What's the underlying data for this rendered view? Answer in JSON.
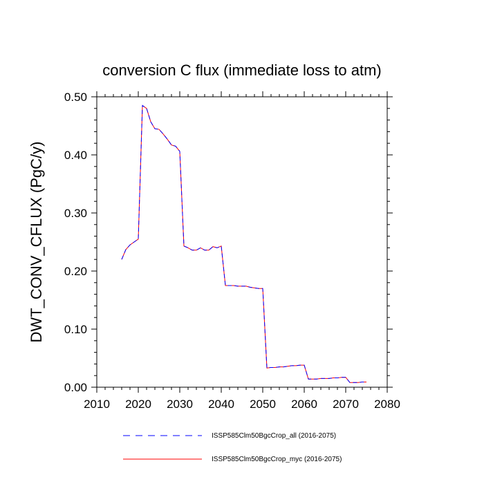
{
  "chart_data": {
    "type": "line",
    "title": "conversion C flux (immediate loss to atm)",
    "xlabel": "",
    "ylabel": "DWT_CONV_CFLUX  (PgC/y)",
    "xlim": [
      2010,
      2080
    ],
    "ylim": [
      0,
      0.5
    ],
    "x_ticks": [
      2010,
      2020,
      2030,
      2040,
      2050,
      2060,
      2070,
      2080
    ],
    "x_tick_labels": [
      "2010",
      "2020",
      "2030",
      "2040",
      "2050",
      "2060",
      "2070",
      "2080"
    ],
    "y_ticks": [
      0,
      0.1,
      0.2,
      0.3,
      0.4,
      0.5
    ],
    "y_tick_labels": [
      "0.00",
      "0.10",
      "0.20",
      "0.30",
      "0.40",
      "0.50"
    ],
    "grid": false,
    "legend_position": "bottom",
    "x": [
      2016,
      2017,
      2018,
      2019,
      2020,
      2021,
      2022,
      2023,
      2024,
      2025,
      2026,
      2027,
      2028,
      2029,
      2030,
      2031,
      2032,
      2033,
      2034,
      2035,
      2036,
      2037,
      2038,
      2039,
      2040,
      2041,
      2042,
      2043,
      2044,
      2045,
      2046,
      2047,
      2048,
      2049,
      2050,
      2051,
      2052,
      2053,
      2054,
      2055,
      2056,
      2057,
      2058,
      2059,
      2060,
      2061,
      2062,
      2063,
      2064,
      2065,
      2066,
      2067,
      2068,
      2069,
      2070,
      2071,
      2072,
      2073,
      2074,
      2075
    ],
    "series": [
      {
        "name": "ISSP585Clm50BgcCrop_all (2016-2075)",
        "color": "#0000ff",
        "dash": "dashed",
        "values": [
          0.22,
          0.237,
          0.245,
          0.25,
          0.255,
          0.485,
          0.48,
          0.457,
          0.445,
          0.444,
          0.436,
          0.427,
          0.417,
          0.415,
          0.406,
          0.243,
          0.24,
          0.236,
          0.236,
          0.24,
          0.236,
          0.236,
          0.242,
          0.24,
          0.243,
          0.175,
          0.175,
          0.175,
          0.174,
          0.174,
          0.174,
          0.172,
          0.171,
          0.17,
          0.17,
          0.033,
          0.034,
          0.034,
          0.035,
          0.035,
          0.036,
          0.037,
          0.037,
          0.038,
          0.038,
          0.014,
          0.014,
          0.014,
          0.015,
          0.015,
          0.015,
          0.016,
          0.016,
          0.017,
          0.017,
          0.008,
          0.008,
          0.008,
          0.009,
          0.009
        ]
      },
      {
        "name": "ISSP585Clm50BgcCrop_myc (2016-2075)",
        "color": "#ff0000",
        "dash": "solid",
        "values": [
          0.22,
          0.237,
          0.245,
          0.25,
          0.255,
          0.485,
          0.48,
          0.457,
          0.445,
          0.444,
          0.436,
          0.427,
          0.417,
          0.415,
          0.406,
          0.243,
          0.24,
          0.236,
          0.236,
          0.24,
          0.236,
          0.236,
          0.242,
          0.24,
          0.243,
          0.175,
          0.175,
          0.175,
          0.174,
          0.174,
          0.174,
          0.172,
          0.171,
          0.17,
          0.17,
          0.033,
          0.034,
          0.034,
          0.035,
          0.035,
          0.036,
          0.037,
          0.037,
          0.038,
          0.038,
          0.014,
          0.014,
          0.014,
          0.015,
          0.015,
          0.015,
          0.016,
          0.016,
          0.017,
          0.017,
          0.008,
          0.008,
          0.008,
          0.009,
          0.009
        ]
      }
    ]
  }
}
